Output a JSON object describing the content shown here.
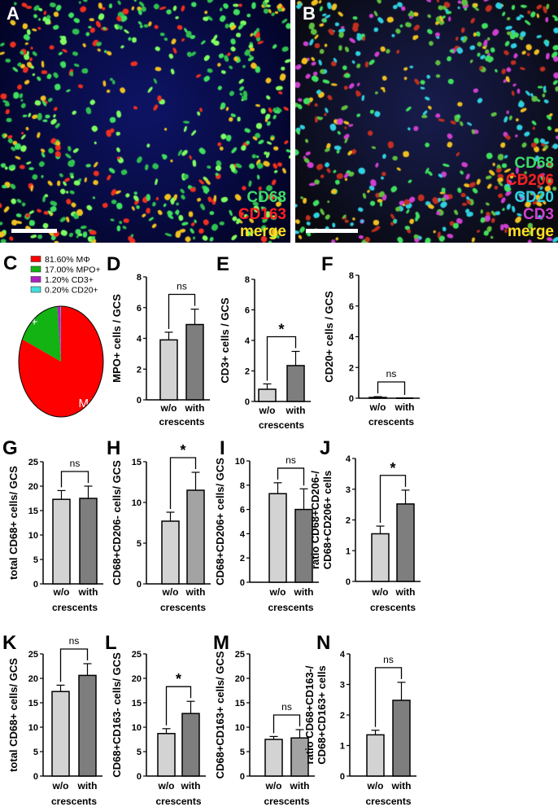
{
  "images": [
    {
      "letter": "A",
      "labels": [
        {
          "text": "CD68",
          "color": "#3ddc6a"
        },
        {
          "text": "CD163",
          "color": "#ff2020"
        },
        {
          "text": "merge",
          "color": "#ffe020"
        }
      ]
    },
    {
      "letter": "B",
      "labels": [
        {
          "text": "CD68",
          "color": "#3ddc6a"
        },
        {
          "text": "CD206",
          "color": "#ff2020"
        },
        {
          "text": "CD20",
          "color": "#30d0e0"
        },
        {
          "text": "CD3",
          "color": "#d040d0"
        },
        {
          "text": "merge",
          "color": "#ffe020"
        }
      ]
    }
  ],
  "chart_data": [
    {
      "panel": "C",
      "type": "pie",
      "slices": [
        {
          "legend": "81.60%  MΦ",
          "label": "Mϕ",
          "value": 81.6,
          "color": "#ff0000"
        },
        {
          "legend": "17.00%  MPO+",
          "label": "MPO+",
          "value": 17.0,
          "color": "#12b312"
        },
        {
          "legend": "1.20%  CD3+",
          "label": "",
          "value": 1.2,
          "color": "#b020c0"
        },
        {
          "legend": "0.20%  CD20+",
          "label": "",
          "value": 0.2,
          "color": "#40e0e0"
        }
      ]
    },
    {
      "panel": "D",
      "type": "bar",
      "ylabel": [
        "MPO+ cells / GCS"
      ],
      "xlabel": "crescents",
      "categories": [
        "w/o",
        "with"
      ],
      "values": [
        3.9,
        4.9
      ],
      "errors": [
        0.5,
        1.0
      ],
      "ylim": [
        0,
        8
      ],
      "yticks": [
        0,
        2,
        4,
        6,
        8
      ],
      "significance": "ns"
    },
    {
      "panel": "E",
      "type": "bar",
      "ylabel": [
        "CD3+ cells / GCS"
      ],
      "xlabel": "crescents",
      "categories": [
        "w/o",
        "with"
      ],
      "values": [
        0.8,
        2.35
      ],
      "errors": [
        0.35,
        0.93
      ],
      "ylim": [
        0,
        8
      ],
      "yticks": [
        0,
        2,
        4,
        6,
        8
      ],
      "significance": "*"
    },
    {
      "panel": "F",
      "type": "bar",
      "ylabel": [
        "CD20+ cells / GCS"
      ],
      "xlabel": "crescents",
      "categories": [
        "w/o",
        "with"
      ],
      "values": [
        0.05,
        0.0
      ],
      "errors": [
        0.05,
        0.0
      ],
      "ylim": [
        0,
        8
      ],
      "yticks": [
        0,
        2,
        4,
        6,
        8
      ],
      "significance": "ns"
    },
    {
      "panel": "G",
      "type": "bar",
      "ylabel": [
        "total CD68+ cells/ GCS"
      ],
      "xlabel": "crescents",
      "categories": [
        "w/o",
        "with"
      ],
      "values": [
        17.3,
        17.5
      ],
      "errors": [
        1.8,
        2.5
      ],
      "ylim": [
        0,
        25
      ],
      "yticks": [
        0,
        5,
        10,
        15,
        20,
        25
      ],
      "significance": "ns"
    },
    {
      "panel": "H",
      "type": "bar",
      "ylabel": [
        "CD68+CD206- cells/ GCS"
      ],
      "xlabel": "crescents",
      "categories": [
        "w/o",
        "with"
      ],
      "values": [
        7.7,
        11.5
      ],
      "errors": [
        1.1,
        2.2
      ],
      "ylim": [
        0,
        15
      ],
      "yticks": [
        0,
        5,
        10,
        15
      ],
      "significance": "*"
    },
    {
      "panel": "I",
      "type": "bar",
      "ylabel": [
        "CD68+CD206+ cells/ GCS"
      ],
      "xlabel": "crescents",
      "categories": [
        "w/o",
        "with"
      ],
      "values": [
        7.3,
        6.0
      ],
      "errors": [
        0.9,
        1.7
      ],
      "ylim": [
        0,
        10
      ],
      "yticks": [
        0,
        2,
        4,
        6,
        8,
        10
      ],
      "significance": "ns"
    },
    {
      "panel": "J",
      "type": "bar",
      "ylabel": [
        "ratio CD68+CD206-/",
        "CD68+CD206+ cells"
      ],
      "xlabel": "crescents",
      "categories": [
        "w/o",
        "with"
      ],
      "values": [
        1.55,
        2.52
      ],
      "errors": [
        0.25,
        0.45
      ],
      "ylim": [
        0,
        4
      ],
      "yticks": [
        0,
        1,
        2,
        3,
        4
      ],
      "significance": "*"
    },
    {
      "panel": "K",
      "type": "bar",
      "ylabel": [
        "total CD68+ cells/ GCS"
      ],
      "xlabel": "crescents",
      "categories": [
        "w/o",
        "with"
      ],
      "values": [
        17.3,
        20.6
      ],
      "errors": [
        1.3,
        2.4
      ],
      "ylim": [
        0,
        25
      ],
      "yticks": [
        0,
        5,
        10,
        15,
        20,
        25
      ],
      "significance": "ns"
    },
    {
      "panel": "L",
      "type": "bar",
      "ylabel": [
        "CD68+CD163- cells/ GCS"
      ],
      "xlabel": "crescents",
      "categories": [
        "w/o",
        "with"
      ],
      "values": [
        8.7,
        12.8
      ],
      "errors": [
        1.0,
        2.5
      ],
      "ylim": [
        0,
        25
      ],
      "yticks": [
        0,
        5,
        10,
        15,
        20,
        25
      ],
      "significance": "*"
    },
    {
      "panel": "M",
      "type": "bar",
      "ylabel": [
        "CD68+CD163+ cells/ GCS"
      ],
      "xlabel": "crescents",
      "categories": [
        "w/o",
        "with"
      ],
      "values": [
        7.5,
        7.8
      ],
      "errors": [
        0.6,
        1.7
      ],
      "ylim": [
        0,
        25
      ],
      "yticks": [
        0,
        5,
        10,
        15,
        20,
        25
      ],
      "significance": "ns"
    },
    {
      "panel": "N",
      "type": "bar",
      "ylabel": [
        "ratio CD68+CD163-/",
        "CD68+CD163+ cells"
      ],
      "xlabel": "crescents",
      "categories": [
        "w/o",
        "with"
      ],
      "values": [
        1.35,
        2.48
      ],
      "errors": [
        0.15,
        0.59
      ],
      "ylim": [
        0,
        4
      ],
      "yticks": [
        0,
        1,
        2,
        3,
        4
      ],
      "significance": "ns"
    }
  ],
  "colors": {
    "w/o": "#d3d3d3",
    "with": "#7e7e7e",
    "with_light": "#a3a3a3",
    "tissue": "#0a1060"
  }
}
